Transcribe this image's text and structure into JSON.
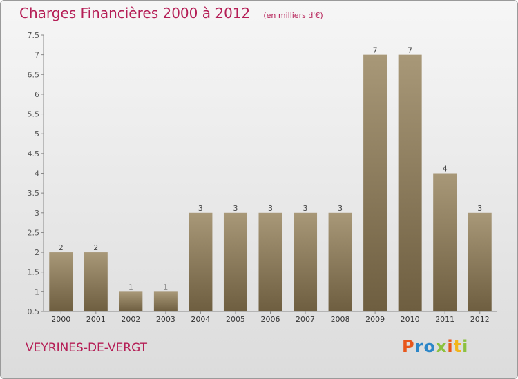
{
  "header": {
    "title": "Charges Financières 2000 à 2012",
    "subtitle": "(en milliers d'€)"
  },
  "footer": {
    "place": "VEYRINES-DE-VERGT",
    "logo_letters": [
      {
        "char": "P",
        "color": "#e8571c"
      },
      {
        "char": "r",
        "color": "#2c86c8"
      },
      {
        "char": "o",
        "color": "#2c86c8"
      },
      {
        "char": "x",
        "color": "#8cc13f"
      },
      {
        "char": "i",
        "color": "#e8571c"
      },
      {
        "char": "t",
        "color": "#f2b51b"
      },
      {
        "char": "i",
        "color": "#8cc13f"
      }
    ]
  },
  "colors": {
    "bar_top": "#a89878",
    "bar_bottom": "#6e5e40",
    "accent": "#b51e56"
  },
  "chart_data": {
    "type": "bar",
    "categories": [
      "2000",
      "2001",
      "2002",
      "2003",
      "2004",
      "2005",
      "2006",
      "2007",
      "2008",
      "2009",
      "2010",
      "2011",
      "2012"
    ],
    "values": [
      2,
      2,
      1,
      1,
      3,
      3,
      3,
      3,
      3,
      7,
      7,
      4,
      3
    ],
    "data_labels": [
      "2",
      "2",
      "1",
      "1",
      "3",
      "3",
      "3",
      "3",
      "3",
      "7",
      "7",
      "4",
      "3"
    ],
    "yticks": [
      "0.5",
      "1",
      "1.5",
      "2",
      "2.5",
      "3",
      "3.5",
      "4",
      "4.5",
      "5",
      "5.5",
      "6",
      "6.5",
      "7",
      "7.5"
    ],
    "ylim": [
      0.5,
      7.5
    ],
    "grid": false,
    "xlabel": "",
    "ylabel": ""
  }
}
